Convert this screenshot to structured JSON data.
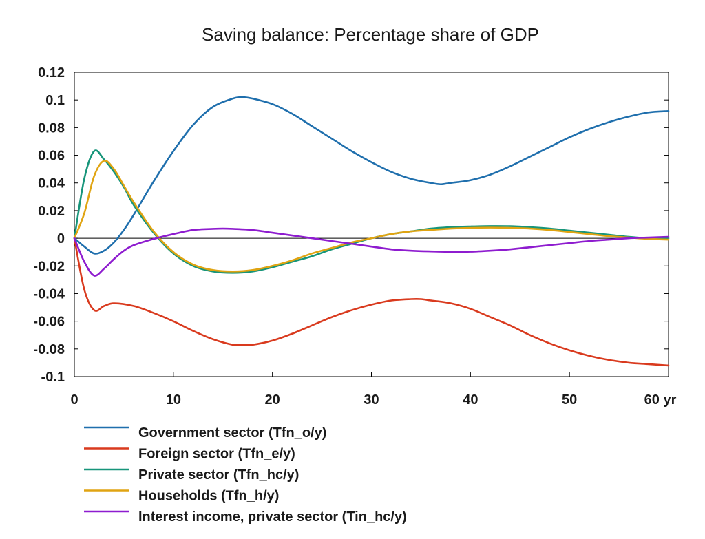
{
  "chart_data": {
    "type": "line",
    "title": "Saving balance: Percentage share of GDP",
    "xlabel": "",
    "ylabel": "",
    "x_unit_label": "yr",
    "xlim": [
      0,
      60
    ],
    "ylim": [
      -0.1,
      0.12
    ],
    "x_ticks": [
      0,
      10,
      20,
      30,
      40,
      50,
      60
    ],
    "y_ticks": [
      0.12,
      0.1,
      0.08,
      0.06,
      0.04,
      0.02,
      0,
      -0.02,
      -0.04,
      -0.06,
      -0.08,
      -0.1
    ],
    "x_tick_labels": [
      "0",
      "10",
      "20",
      "30",
      "40",
      "50",
      "60 yr"
    ],
    "y_tick_labels": [
      "0.12",
      "0.1",
      "0.08",
      "0.06",
      "0.04",
      "0.02",
      "0",
      "-0.02",
      "-0.04",
      "-0.06",
      "-0.08",
      "-0.1"
    ],
    "zero_line": true,
    "grid": false,
    "legend_position": "bottom",
    "series": [
      {
        "name": "Government sector (Tfn_o/y)",
        "color": "#1f6fad",
        "points": [
          [
            0,
            0
          ],
          [
            1,
            -0.006
          ],
          [
            2,
            -0.011
          ],
          [
            3,
            -0.009
          ],
          [
            4,
            -0.003
          ],
          [
            5,
            0.006
          ],
          [
            6,
            0.017
          ],
          [
            8,
            0.041
          ],
          [
            10,
            0.063
          ],
          [
            12,
            0.082
          ],
          [
            14,
            0.095
          ],
          [
            16,
            0.101
          ],
          [
            17,
            0.102
          ],
          [
            18,
            0.101
          ],
          [
            20,
            0.097
          ],
          [
            22,
            0.09
          ],
          [
            24,
            0.081
          ],
          [
            26,
            0.072
          ],
          [
            28,
            0.063
          ],
          [
            30,
            0.055
          ],
          [
            32,
            0.048
          ],
          [
            34,
            0.043
          ],
          [
            36,
            0.04
          ],
          [
            37,
            0.039
          ],
          [
            38,
            0.04
          ],
          [
            40,
            0.042
          ],
          [
            42,
            0.046
          ],
          [
            44,
            0.052
          ],
          [
            46,
            0.059
          ],
          [
            48,
            0.066
          ],
          [
            50,
            0.073
          ],
          [
            52,
            0.079
          ],
          [
            54,
            0.084
          ],
          [
            56,
            0.088
          ],
          [
            58,
            0.091
          ],
          [
            60,
            0.092
          ]
        ]
      },
      {
        "name": "Foreign sector (Tfn_e/y)",
        "color": "#d93a1e",
        "points": [
          [
            0,
            0
          ],
          [
            1,
            -0.037
          ],
          [
            2,
            -0.052
          ],
          [
            3,
            -0.049
          ],
          [
            4,
            -0.047
          ],
          [
            6,
            -0.049
          ],
          [
            8,
            -0.054
          ],
          [
            10,
            -0.06
          ],
          [
            12,
            -0.067
          ],
          [
            14,
            -0.073
          ],
          [
            16,
            -0.077
          ],
          [
            17,
            -0.077
          ],
          [
            18,
            -0.077
          ],
          [
            20,
            -0.074
          ],
          [
            22,
            -0.069
          ],
          [
            24,
            -0.063
          ],
          [
            26,
            -0.057
          ],
          [
            28,
            -0.052
          ],
          [
            30,
            -0.048
          ],
          [
            32,
            -0.045
          ],
          [
            34,
            -0.044
          ],
          [
            35,
            -0.044
          ],
          [
            36,
            -0.045
          ],
          [
            38,
            -0.047
          ],
          [
            40,
            -0.051
          ],
          [
            42,
            -0.057
          ],
          [
            44,
            -0.063
          ],
          [
            46,
            -0.07
          ],
          [
            48,
            -0.076
          ],
          [
            50,
            -0.081
          ],
          [
            52,
            -0.085
          ],
          [
            54,
            -0.088
          ],
          [
            56,
            -0.09
          ],
          [
            58,
            -0.091
          ],
          [
            60,
            -0.092
          ]
        ]
      },
      {
        "name": "Private sector (Tfn_hc/y)",
        "color": "#17957a",
        "points": [
          [
            0,
            0
          ],
          [
            1,
            0.043
          ],
          [
            2,
            0.063
          ],
          [
            3,
            0.057
          ],
          [
            4,
            0.048
          ],
          [
            5,
            0.037
          ],
          [
            6,
            0.024
          ],
          [
            8,
            0.004
          ],
          [
            10,
            -0.011
          ],
          [
            12,
            -0.02
          ],
          [
            14,
            -0.024
          ],
          [
            16,
            -0.025
          ],
          [
            18,
            -0.024
          ],
          [
            20,
            -0.021
          ],
          [
            22,
            -0.017
          ],
          [
            24,
            -0.013
          ],
          [
            26,
            -0.008
          ],
          [
            28,
            -0.004
          ],
          [
            30,
            0
          ],
          [
            32,
            0.003
          ],
          [
            34,
            0.005
          ],
          [
            36,
            0.007
          ],
          [
            38,
            0.008
          ],
          [
            40,
            0.0085
          ],
          [
            42,
            0.0088
          ],
          [
            44,
            0.0087
          ],
          [
            46,
            0.008
          ],
          [
            48,
            0.007
          ],
          [
            50,
            0.0055
          ],
          [
            52,
            0.004
          ],
          [
            54,
            0.0025
          ],
          [
            56,
            0.001
          ],
          [
            58,
            0
          ],
          [
            60,
            0
          ]
        ]
      },
      {
        "name": "Households (Tfn_h/y)",
        "color": "#e0a412",
        "points": [
          [
            0,
            0
          ],
          [
            1,
            0.018
          ],
          [
            2,
            0.045
          ],
          [
            3,
            0.056
          ],
          [
            4,
            0.05
          ],
          [
            5,
            0.038
          ],
          [
            6,
            0.026
          ],
          [
            8,
            0.005
          ],
          [
            10,
            -0.01
          ],
          [
            12,
            -0.019
          ],
          [
            14,
            -0.023
          ],
          [
            16,
            -0.024
          ],
          [
            18,
            -0.023
          ],
          [
            20,
            -0.02
          ],
          [
            22,
            -0.016
          ],
          [
            24,
            -0.011
          ],
          [
            26,
            -0.007
          ],
          [
            28,
            -0.003
          ],
          [
            30,
            0
          ],
          [
            32,
            0.003
          ],
          [
            34,
            0.005
          ],
          [
            36,
            0.006
          ],
          [
            38,
            0.007
          ],
          [
            40,
            0.0075
          ],
          [
            42,
            0.0077
          ],
          [
            44,
            0.0075
          ],
          [
            46,
            0.007
          ],
          [
            48,
            0.006
          ],
          [
            50,
            0.0045
          ],
          [
            52,
            0.003
          ],
          [
            54,
            0.0015
          ],
          [
            56,
            0.0005
          ],
          [
            58,
            -0.0005
          ],
          [
            60,
            -0.001
          ]
        ]
      },
      {
        "name": "Interest income, private sector (Tin_hc/y)",
        "color": "#8e1ccf",
        "points": [
          [
            0,
            0
          ],
          [
            1,
            -0.017
          ],
          [
            2,
            -0.027
          ],
          [
            3,
            -0.022
          ],
          [
            4,
            -0.015
          ],
          [
            5,
            -0.009
          ],
          [
            6,
            -0.005
          ],
          [
            8,
            -0.0005
          ],
          [
            10,
            0.003
          ],
          [
            12,
            0.006
          ],
          [
            14,
            0.0068
          ],
          [
            15,
            0.007
          ],
          [
            16,
            0.0068
          ],
          [
            18,
            0.006
          ],
          [
            20,
            0.004
          ],
          [
            22,
            0.002
          ],
          [
            24,
            0
          ],
          [
            26,
            -0.002
          ],
          [
            28,
            -0.004
          ],
          [
            30,
            -0.006
          ],
          [
            32,
            -0.008
          ],
          [
            34,
            -0.009
          ],
          [
            36,
            -0.0095
          ],
          [
            38,
            -0.0098
          ],
          [
            40,
            -0.0097
          ],
          [
            42,
            -0.009
          ],
          [
            44,
            -0.008
          ],
          [
            46,
            -0.0065
          ],
          [
            48,
            -0.005
          ],
          [
            50,
            -0.0035
          ],
          [
            52,
            -0.002
          ],
          [
            54,
            -0.001
          ],
          [
            56,
            0
          ],
          [
            58,
            0.0005
          ],
          [
            60,
            0.001
          ]
        ]
      }
    ]
  }
}
